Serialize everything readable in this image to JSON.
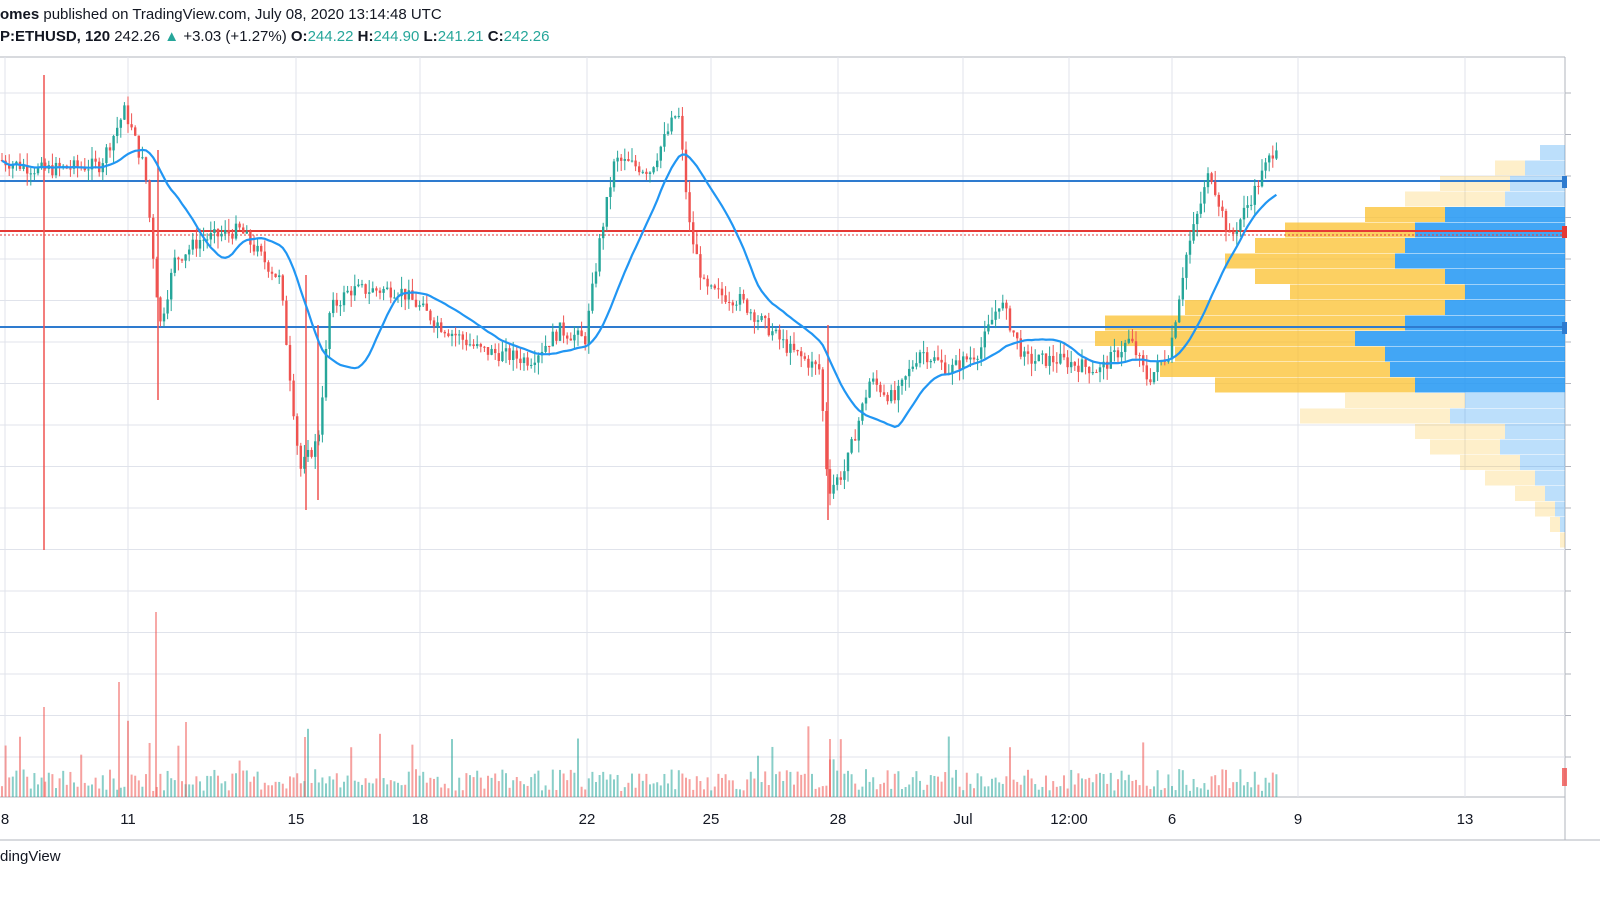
{
  "header": {
    "author": "omes",
    "published_text": "published on TradingView.com, July 08, 2020 13:14:48 UTC",
    "symbol": "P:ETHUSD, 120",
    "last": "242.26",
    "arrow": "▲",
    "change": "+3.03 (+1.27%)",
    "o_label": "O:",
    "o_value": "244.22",
    "h_label": "H:",
    "h_value": "244.90",
    "l_label": "L:",
    "l_value": "241.21",
    "c_label": "C:",
    "c_value": "242.26"
  },
  "footer": {
    "brand": "dingView"
  },
  "colors": {
    "up": "#26a69a",
    "down": "#ef5350",
    "ma": "#2196f3",
    "level": "#2e7bcf",
    "resistance": "#e53935",
    "vp_up": "#fbc02d",
    "vp_down": "#2196f3",
    "grid": "#e0e3eb"
  },
  "chart_data": {
    "type": "candlestick",
    "symbol": "ETHUSD",
    "interval": "120",
    "x_ticks": [
      "8",
      "11",
      "15",
      "18",
      "22",
      "25",
      "28",
      "Jul",
      "12:00",
      "6",
      "9",
      "13"
    ],
    "price_path": [
      [
        0,
        238
      ],
      [
        40,
        236
      ],
      [
        100,
        237
      ],
      [
        125,
        248
      ],
      [
        145,
        236
      ],
      [
        160,
        205
      ],
      [
        175,
        218
      ],
      [
        200,
        222
      ],
      [
        240,
        224
      ],
      [
        280,
        214
      ],
      [
        300,
        176
      ],
      [
        318,
        182
      ],
      [
        330,
        208
      ],
      [
        350,
        212
      ],
      [
        400,
        212
      ],
      [
        440,
        205
      ],
      [
        480,
        200
      ],
      [
        530,
        198
      ],
      [
        560,
        204
      ],
      [
        585,
        202
      ],
      [
        600,
        222
      ],
      [
        615,
        238
      ],
      [
        650,
        236
      ],
      [
        678,
        248
      ],
      [
        690,
        224
      ],
      [
        705,
        212
      ],
      [
        740,
        210
      ],
      [
        790,
        200
      ],
      [
        820,
        196
      ],
      [
        828,
        172
      ],
      [
        845,
        176
      ],
      [
        870,
        194
      ],
      [
        895,
        190
      ],
      [
        920,
        200
      ],
      [
        950,
        196
      ],
      [
        980,
        200
      ],
      [
        1000,
        210
      ],
      [
        1025,
        198
      ],
      [
        1060,
        198
      ],
      [
        1100,
        196
      ],
      [
        1130,
        202
      ],
      [
        1148,
        194
      ],
      [
        1170,
        200
      ],
      [
        1185,
        218
      ],
      [
        1210,
        236
      ],
      [
        1230,
        222
      ],
      [
        1255,
        232
      ],
      [
        1278,
        242
      ]
    ],
    "volume_levels": [
      [
        -2,
        -10
      ],
      [
        -2,
        -8
      ],
      [
        -3,
        -6
      ],
      [
        -4,
        -4
      ],
      [
        -6,
        -3
      ],
      [
        -7,
        -2
      ],
      [
        -8,
        8
      ],
      [
        -9,
        8
      ],
      [
        -7,
        5
      ],
      [
        -6,
        4
      ],
      [
        -5,
        3
      ],
      [
        -4,
        2
      ],
      [
        -3,
        2
      ],
      [
        -2,
        1
      ],
      [
        -1,
        1
      ],
      [
        0,
        0
      ]
    ],
    "resistance_level": 237,
    "support_level": 210,
    "upper_level": 246
  }
}
